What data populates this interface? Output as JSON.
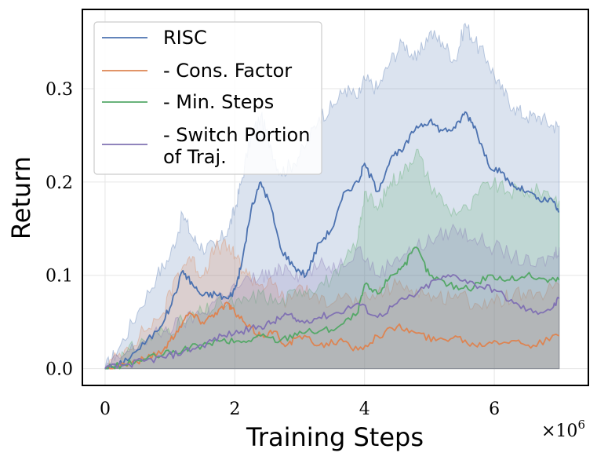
{
  "chart_data": {
    "type": "line",
    "xlabel": "Training Steps",
    "ylabel": "Return",
    "x_multiplier_label": "×10",
    "x_multiplier_exponent": "6",
    "xlim": [
      -0.35,
      7.45
    ],
    "ylim": [
      -0.018,
      0.385
    ],
    "x_ticks": [
      0,
      2,
      4,
      6
    ],
    "x_tick_labels": [
      "0",
      "2",
      "4",
      "6"
    ],
    "y_ticks": [
      0.0,
      0.1,
      0.2,
      0.3
    ],
    "y_tick_labels": [
      "0.0",
      "0.1",
      "0.2",
      "0.3"
    ],
    "grid": true,
    "legend_position": "top-left",
    "series": [
      {
        "name": "RISC",
        "legend_lines": [
          "RISC"
        ],
        "color": "#4c72b0",
        "x": [
          0,
          0.2,
          0.5,
          0.8,
          1.0,
          1.2,
          1.35,
          1.5,
          1.7,
          1.9,
          2.0,
          2.1,
          2.25,
          2.4,
          2.55,
          2.7,
          2.9,
          3.1,
          3.3,
          3.5,
          3.7,
          3.9,
          4.0,
          4.2,
          4.4,
          4.6,
          4.8,
          5.0,
          5.2,
          5.4,
          5.55,
          5.7,
          5.9,
          6.1,
          6.3,
          6.5,
          6.7,
          6.9,
          7.0
        ],
        "y": [
          0,
          0.003,
          0.02,
          0.04,
          0.065,
          0.105,
          0.09,
          0.078,
          0.08,
          0.075,
          0.085,
          0.11,
          0.17,
          0.2,
          0.175,
          0.13,
          0.11,
          0.1,
          0.135,
          0.15,
          0.19,
          0.2,
          0.22,
          0.19,
          0.225,
          0.235,
          0.26,
          0.265,
          0.255,
          0.258,
          0.275,
          0.26,
          0.22,
          0.21,
          0.195,
          0.19,
          0.18,
          0.18,
          0.168
        ],
        "lower": [
          0,
          0,
          0,
          0,
          0,
          0,
          0,
          0,
          0,
          0,
          0,
          0,
          0,
          0,
          0,
          0,
          0,
          0,
          0,
          0,
          0,
          0,
          0,
          0,
          0,
          0,
          0,
          0,
          0,
          0,
          0,
          0,
          0,
          0,
          0,
          0,
          0,
          0,
          0
        ],
        "upper": [
          0,
          0.02,
          0.06,
          0.1,
          0.12,
          0.165,
          0.14,
          0.13,
          0.13,
          0.15,
          0.17,
          0.2,
          0.25,
          0.27,
          0.24,
          0.21,
          0.22,
          0.24,
          0.27,
          0.28,
          0.3,
          0.29,
          0.31,
          0.3,
          0.33,
          0.35,
          0.33,
          0.36,
          0.35,
          0.33,
          0.37,
          0.35,
          0.33,
          0.3,
          0.28,
          0.27,
          0.27,
          0.26,
          0.26
        ]
      },
      {
        "name": "- Cons. Factor",
        "legend_lines": [
          "- Cons. Factor"
        ],
        "color": "#dd8452",
        "x": [
          0,
          0.3,
          0.6,
          0.9,
          1.1,
          1.3,
          1.5,
          1.7,
          1.9,
          2.0,
          2.2,
          2.4,
          2.6,
          2.8,
          3.0,
          3.3,
          3.6,
          3.9,
          4.2,
          4.5,
          4.8,
          5.1,
          5.4,
          5.7,
          6.0,
          6.3,
          6.6,
          7.0
        ],
        "y": [
          0,
          0.005,
          0.01,
          0.02,
          0.04,
          0.06,
          0.05,
          0.06,
          0.07,
          0.06,
          0.045,
          0.035,
          0.04,
          0.025,
          0.035,
          0.025,
          0.03,
          0.02,
          0.035,
          0.045,
          0.038,
          0.03,
          0.035,
          0.025,
          0.03,
          0.03,
          0.025,
          0.035
        ],
        "lower": [
          0,
          0,
          0,
          0,
          0,
          0,
          0,
          0,
          0,
          0,
          0,
          0,
          0,
          0,
          0,
          0,
          0,
          0,
          0,
          0,
          0,
          0,
          0,
          0,
          0,
          0,
          0,
          0
        ],
        "upper": [
          0,
          0.02,
          0.04,
          0.06,
          0.1,
          0.12,
          0.1,
          0.13,
          0.13,
          0.12,
          0.1,
          0.09,
          0.09,
          0.07,
          0.09,
          0.07,
          0.08,
          0.07,
          0.08,
          0.09,
          0.085,
          0.075,
          0.08,
          0.07,
          0.07,
          0.08,
          0.075,
          0.09
        ]
      },
      {
        "name": "- Min. Steps",
        "legend_lines": [
          "- Min. Steps"
        ],
        "color": "#55a868",
        "x": [
          0,
          0.3,
          0.6,
          0.9,
          1.2,
          1.5,
          1.8,
          2.1,
          2.4,
          2.7,
          3.0,
          3.3,
          3.6,
          3.9,
          4.0,
          4.2,
          4.4,
          4.6,
          4.8,
          5.0,
          5.3,
          5.6,
          5.9,
          6.2,
          6.5,
          6.8,
          7.0
        ],
        "y": [
          0,
          0.004,
          0.01,
          0.015,
          0.02,
          0.025,
          0.03,
          0.028,
          0.035,
          0.03,
          0.04,
          0.04,
          0.045,
          0.06,
          0.09,
          0.08,
          0.1,
          0.11,
          0.13,
          0.1,
          0.09,
          0.085,
          0.1,
          0.095,
          0.1,
          0.095,
          0.095
        ],
        "lower": [
          0,
          0,
          0,
          0,
          0,
          0,
          0,
          0,
          0,
          0,
          0,
          0,
          0,
          0,
          0,
          0,
          0,
          0,
          0,
          0,
          0,
          0,
          0,
          0,
          0,
          0,
          0
        ],
        "upper": [
          0,
          0.015,
          0.03,
          0.04,
          0.05,
          0.06,
          0.07,
          0.07,
          0.08,
          0.07,
          0.085,
          0.09,
          0.1,
          0.14,
          0.19,
          0.17,
          0.2,
          0.21,
          0.235,
          0.2,
          0.17,
          0.17,
          0.2,
          0.19,
          0.19,
          0.19,
          0.18
        ]
      },
      {
        "name": "- Switch Portion of Traj.",
        "legend_lines": [
          "- Switch Portion",
          "of Traj."
        ],
        "color": "#8172b3",
        "x": [
          0,
          0.3,
          0.6,
          0.9,
          1.2,
          1.5,
          1.8,
          2.1,
          2.4,
          2.6,
          2.8,
          3.0,
          3.3,
          3.6,
          3.9,
          4.2,
          4.5,
          4.8,
          5.1,
          5.4,
          5.7,
          6.0,
          6.3,
          6.6,
          6.9,
          7.0
        ],
        "y": [
          0,
          0.004,
          0.008,
          0.012,
          0.018,
          0.025,
          0.035,
          0.04,
          0.045,
          0.05,
          0.058,
          0.05,
          0.055,
          0.06,
          0.07,
          0.055,
          0.07,
          0.08,
          0.095,
          0.1,
          0.09,
          0.085,
          0.07,
          0.06,
          0.065,
          0.075
        ],
        "lower": [
          0,
          0,
          0,
          0,
          0,
          0,
          0,
          0,
          0,
          0,
          0,
          0,
          0,
          0,
          0,
          0,
          0,
          0,
          0,
          0,
          0,
          0,
          0,
          0,
          0,
          0
        ],
        "upper": [
          0,
          0.015,
          0.03,
          0.04,
          0.05,
          0.06,
          0.08,
          0.09,
          0.1,
          0.1,
          0.11,
          0.1,
          0.11,
          0.11,
          0.13,
          0.1,
          0.12,
          0.13,
          0.14,
          0.15,
          0.14,
          0.13,
          0.12,
          0.11,
          0.12,
          0.13
        ]
      }
    ]
  }
}
